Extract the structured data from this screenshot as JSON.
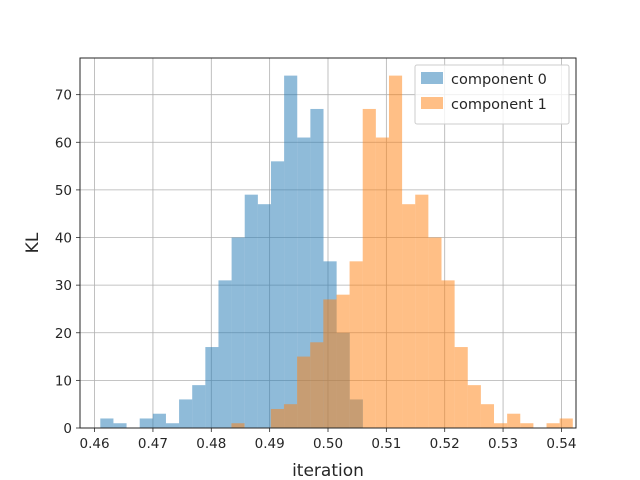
{
  "chart_data": {
    "type": "bar",
    "xlabel": "iteration",
    "ylabel": "KL",
    "xlim": [
      0.4575,
      0.5425
    ],
    "ylim": [
      0,
      77.7
    ],
    "xticks": [
      "0.46",
      "0.47",
      "0.48",
      "0.49",
      "0.50",
      "0.51",
      "0.52",
      "0.53",
      "0.54"
    ],
    "yticks": [
      "0",
      "10",
      "20",
      "30",
      "40",
      "50",
      "60",
      "70"
    ],
    "grid": true,
    "legend_position": "top-right",
    "bin_width": 0.00225,
    "series": [
      {
        "name": "component 0",
        "color": "#1f77b4",
        "alpha": 0.5,
        "bin_start": 0.46098,
        "counts": [
          2,
          1,
          0,
          2,
          3,
          1,
          6,
          9,
          17,
          31,
          40,
          49,
          47,
          56,
          74,
          61,
          67,
          35,
          20,
          6
        ]
      },
      {
        "name": "component 1",
        "color": "#ff7f0e",
        "alpha": 0.5,
        "bin_start": 0.48345,
        "counts": [
          1,
          0,
          0,
          4,
          5,
          15,
          18,
          27,
          28,
          35,
          67,
          61,
          74,
          47,
          49,
          40,
          31,
          17,
          9,
          5,
          1,
          3,
          1,
          0,
          1,
          2
        ]
      }
    ]
  }
}
